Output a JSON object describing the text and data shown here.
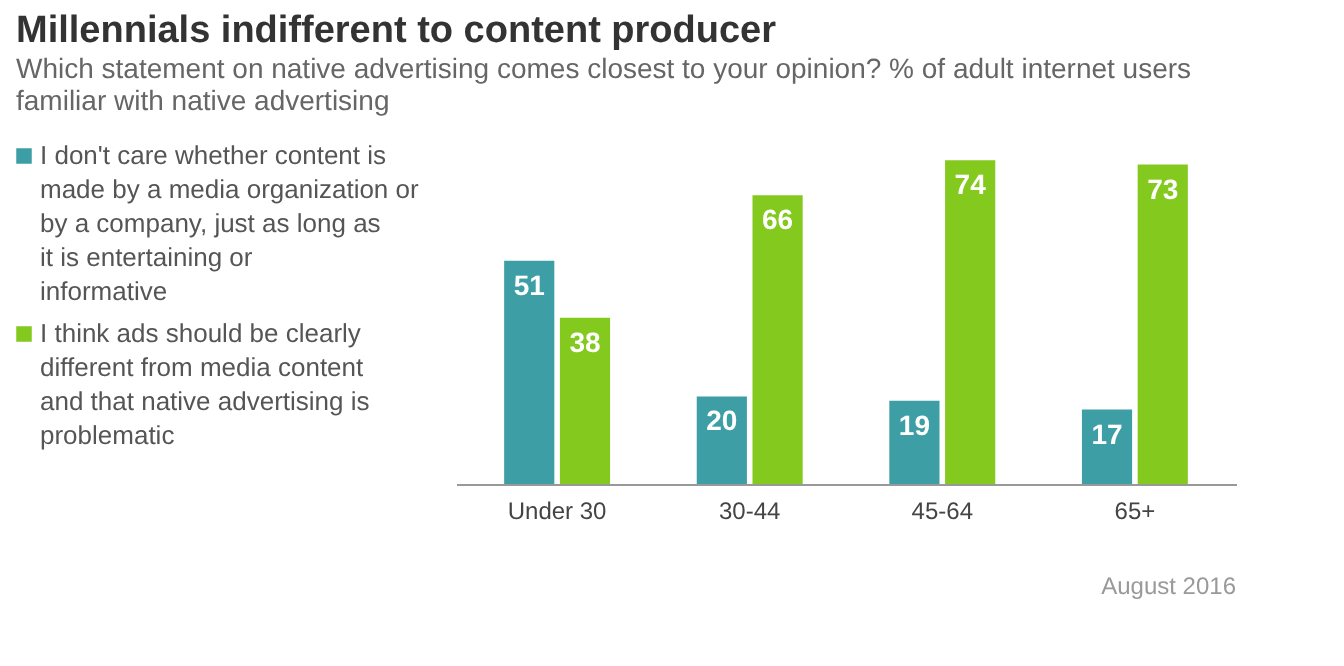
{
  "chart_data": {
    "type": "bar",
    "title": "Millennials indifferent to content producer",
    "subtitle": "Which statement on native advertising comes closest to your opinion? % of adult internet users familiar with native advertising",
    "categories": [
      "Under 30",
      "30-44",
      "45-64",
      "65+"
    ],
    "series": [
      {
        "name": "I don't care whether content is made by a media organization or by a company, just as long as it is entertaining or informative",
        "color": "#3e9ea6",
        "values": [
          51,
          20,
          19,
          17
        ]
      },
      {
        "name": "I think ads should be clearly different from media content and that native advertising is problematic",
        "color": "#84c91e",
        "values": [
          38,
          66,
          74,
          73
        ]
      }
    ],
    "data_labels": true,
    "legend": "left",
    "grid": false,
    "annotations": [
      "August 2016"
    ]
  }
}
